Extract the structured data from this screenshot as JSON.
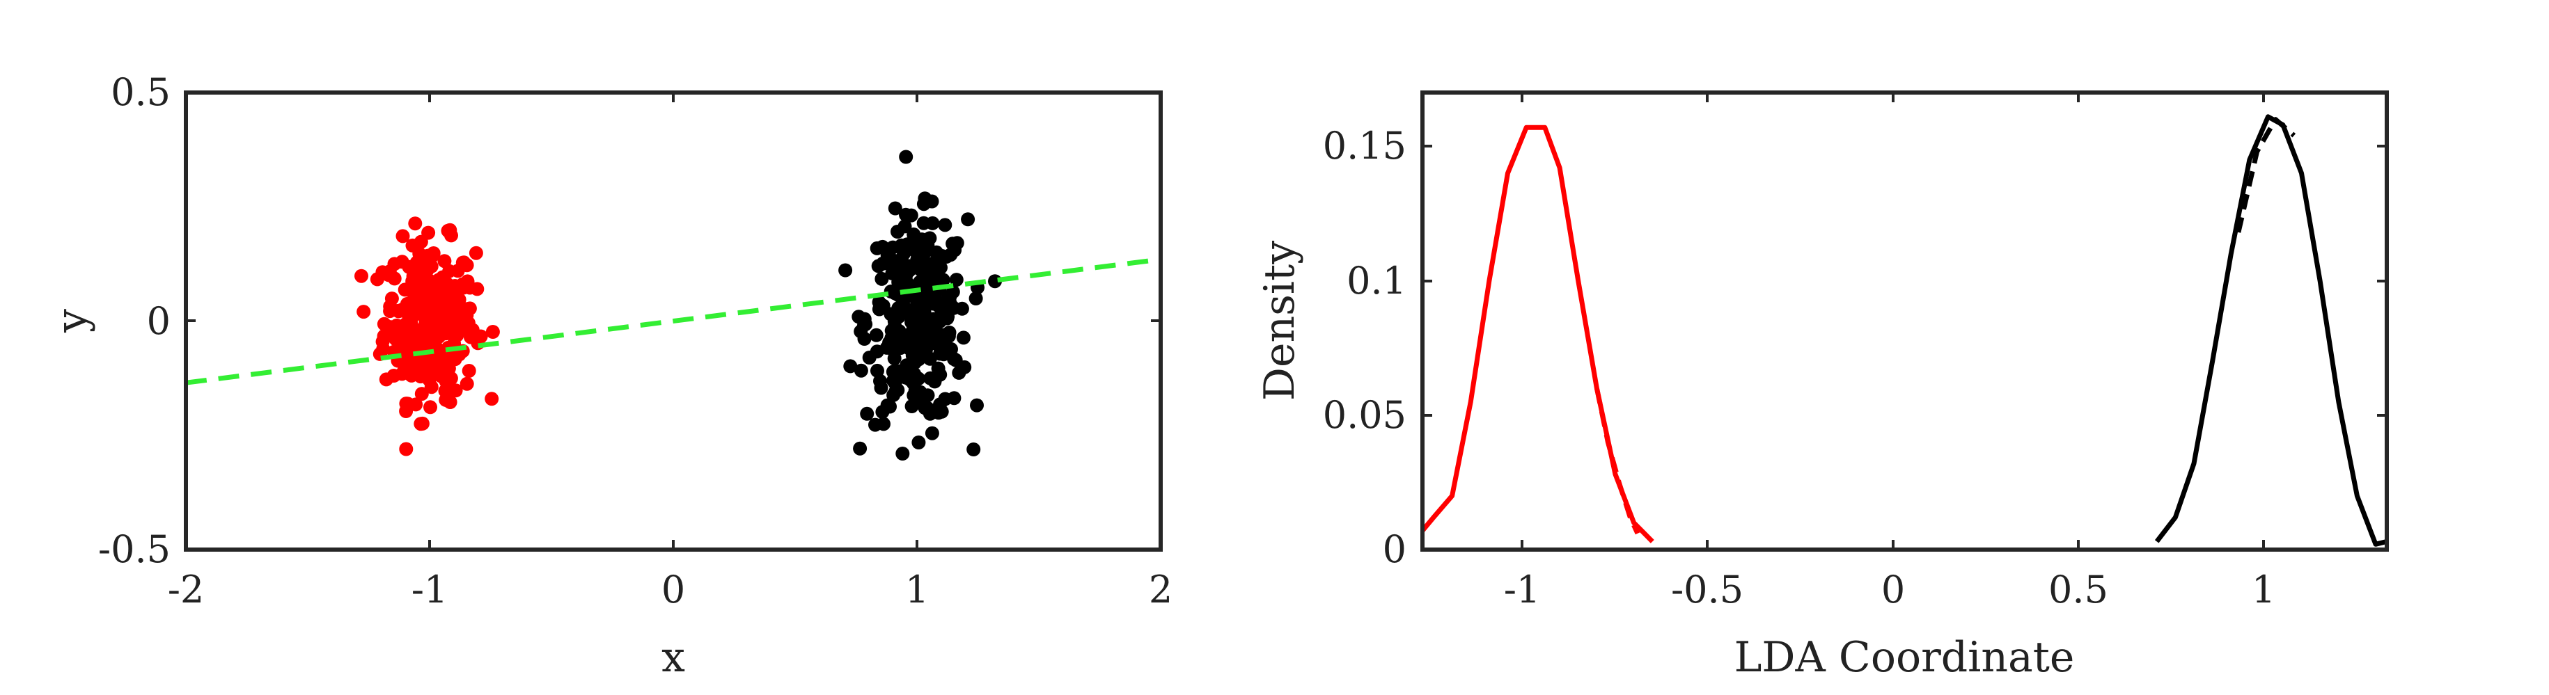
{
  "chart_data": [
    {
      "type": "scatter",
      "title": "",
      "xlabel": "x",
      "ylabel": "y",
      "xlim": [
        -2,
        2
      ],
      "ylim": [
        -0.5,
        0.5
      ],
      "xticks": [
        "-2",
        "-1",
        "0",
        "1",
        "2"
      ],
      "yticks": [
        "-0.5",
        "0",
        "0.5"
      ],
      "grid": false,
      "series": [
        {
          "color": "#ff0000",
          "marker": "filled-circle",
          "cluster_center": [
            -1.0,
            0.0
          ],
          "x_range": [
            -1.28,
            -0.7
          ],
          "y_range": [
            -0.28,
            0.25
          ],
          "approx_points": 300
        },
        {
          "color": "#000000",
          "marker": "filled-circle",
          "cluster_center": [
            1.0,
            0.0
          ],
          "x_range": [
            0.68,
            1.32
          ],
          "y_range": [
            -0.29,
            0.39
          ],
          "approx_points": 300
        }
      ],
      "decision_line": {
        "color": "#33ee33",
        "style": "dashed",
        "x": [
          -2,
          2
        ],
        "y": [
          -0.135,
          0.135
        ]
      }
    },
    {
      "type": "line",
      "title": "",
      "xlabel": "LDA Coordinate",
      "ylabel": "Density",
      "xlim": [
        -1.3,
        1.3
      ],
      "ylim": [
        0,
        0.17
      ],
      "xticks": [
        "-1",
        "-0.5",
        "0",
        "0.5",
        "1"
      ],
      "yticks": [
        "0",
        "0.05",
        "0.1",
        "0.15"
      ],
      "grid": false,
      "series": [
        {
          "color": "#ff0000",
          "style": "solid",
          "x": [
            -1.3,
            -1.27,
            -1.22,
            -1.17,
            -1.12,
            -1.07,
            -1.02,
            -0.97,
            -0.93,
            -0.88,
            -0.83,
            -0.78,
            -0.73,
            -0.68
          ],
          "y": [
            0.007,
            0.012,
            0.02,
            0.055,
            0.1,
            0.14,
            0.157,
            0.157,
            0.142,
            0.1,
            0.06,
            0.028,
            0.01,
            0.003
          ]
        },
        {
          "color": "#ff0000",
          "style": "dashed",
          "x": [
            -0.83,
            -0.8,
            -0.77,
            -0.74,
            -0.72
          ],
          "y": [
            0.06,
            0.04,
            0.025,
            0.012,
            0.006
          ]
        },
        {
          "color": "#000000",
          "style": "solid",
          "x": [
            0.68,
            0.73,
            0.78,
            0.83,
            0.88,
            0.93,
            0.98,
            1.02,
            1.07,
            1.12,
            1.17,
            1.22,
            1.27,
            1.3
          ],
          "y": [
            0.003,
            0.012,
            0.032,
            0.07,
            0.11,
            0.145,
            0.161,
            0.158,
            0.14,
            0.1,
            0.055,
            0.02,
            0.002,
            0.003
          ]
        },
        {
          "color": "#000000",
          "style": "dashed",
          "x": [
            0.9,
            0.95,
            1.0,
            1.05
          ],
          "y": [
            0.118,
            0.148,
            0.16,
            0.154
          ]
        }
      ]
    }
  ]
}
